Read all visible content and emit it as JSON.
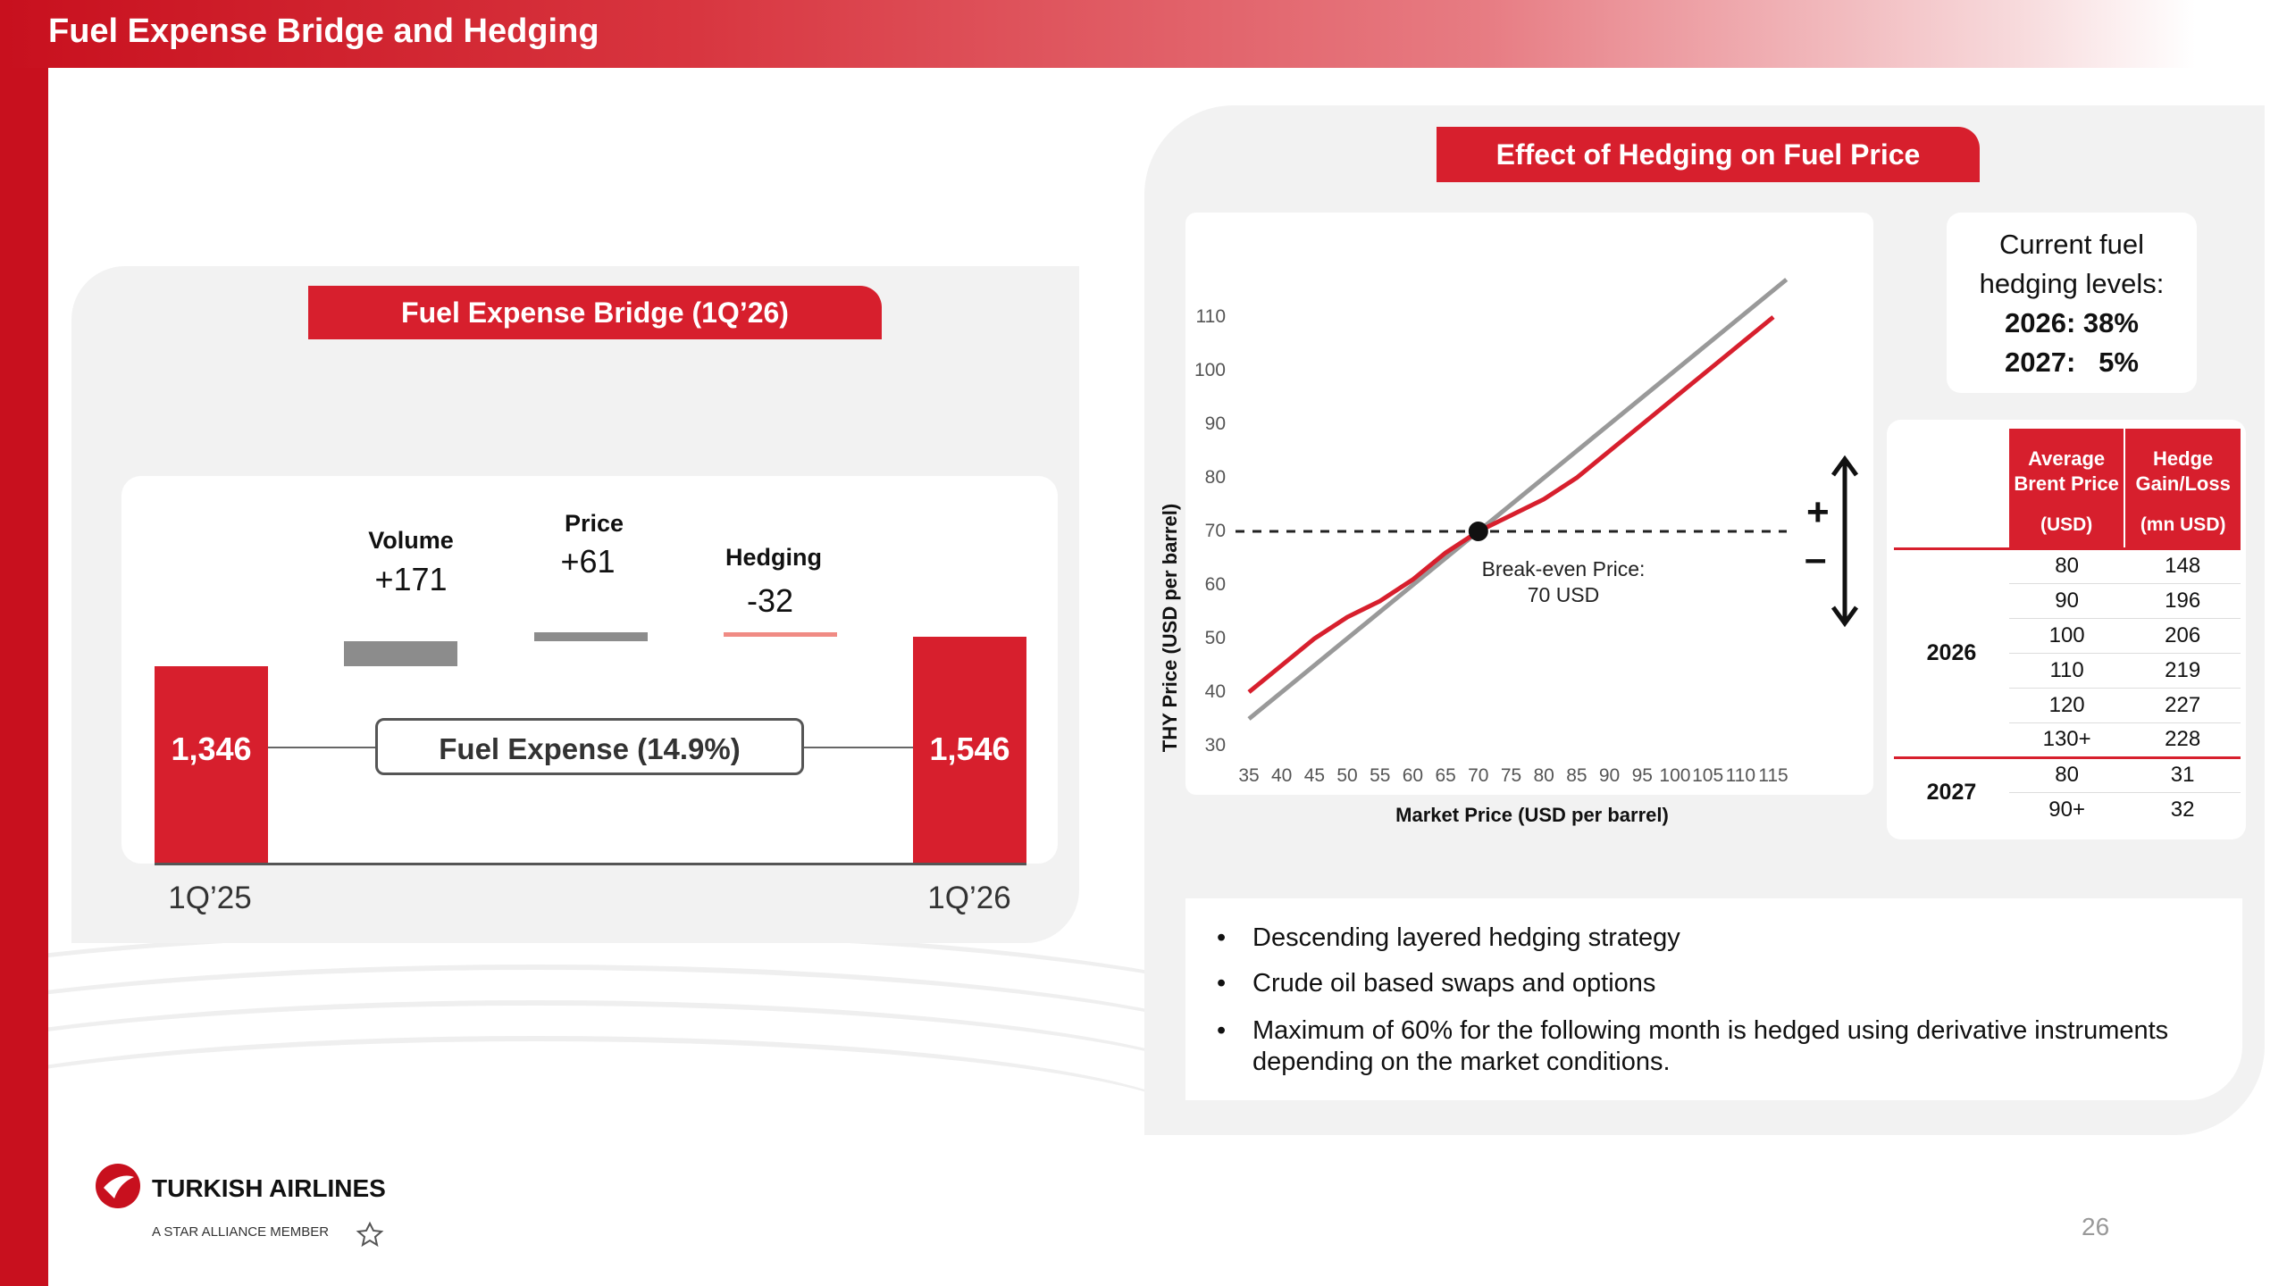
{
  "page": {
    "title": "Fuel Expense Bridge and Hedging",
    "page_number": "26"
  },
  "colors": {
    "brand_red": "#d71f2d",
    "grey": "#8c8c8c",
    "salmon": "#f08b84"
  },
  "bridge": {
    "heading": "Fuel Expense Bridge (1Q’26)",
    "start": {
      "period": "1Q’25",
      "value": "1,346"
    },
    "end": {
      "period": "1Q’26",
      "value": "1,546"
    },
    "center_label": "Fuel Expense (14.9%)",
    "steps": [
      {
        "label": "Volume",
        "value": "+171"
      },
      {
        "label": "Price",
        "value": "+61"
      },
      {
        "label": "Hedging",
        "value": "-32"
      }
    ]
  },
  "hedge_section": {
    "heading": "Effect of Hedging on Fuel Price",
    "levels": {
      "line1": "Current fuel",
      "line2": "hedging levels:",
      "line3": "2026: 38%",
      "line4": "2027:   5%"
    },
    "table": {
      "col1_header": "Average Brent Price",
      "col1_unit": "(USD)",
      "col2_header": "Hedge Gain/Loss",
      "col2_unit": "(mn USD)",
      "groups": [
        {
          "year": "2026",
          "rows": [
            [
              "80",
              "148"
            ],
            [
              "90",
              "196"
            ],
            [
              "100",
              "206"
            ],
            [
              "110",
              "219"
            ],
            [
              "120",
              "227"
            ],
            [
              "130+",
              "228"
            ]
          ]
        },
        {
          "year": "2027",
          "rows": [
            [
              "80",
              "31"
            ],
            [
              "90+",
              "32"
            ]
          ]
        }
      ]
    },
    "bullets": [
      "Descending layered hedging strategy",
      "Crude oil based swaps and options",
      "Maximum of 60% for the following month is hedged using derivative instruments depending on the market conditions."
    ],
    "plus_sign": "+",
    "minus_sign": "–"
  },
  "chart_data": {
    "type": "line",
    "xlabel": "Market Price (USD per barrel)",
    "ylabel": "THY Price (USD per barrel)",
    "x_ticks": [
      "35",
      "40",
      "45",
      "50",
      "55",
      "60",
      "65",
      "70",
      "75",
      "80",
      "85",
      "90",
      "95",
      "100",
      "105",
      "110",
      "115"
    ],
    "y_ticks": [
      "30",
      "40",
      "50",
      "60",
      "70",
      "80",
      "90",
      "100",
      "110"
    ],
    "xlim": [
      35,
      115
    ],
    "ylim": [
      30,
      110
    ],
    "annotation": {
      "line1": "Break-even Price:",
      "line2": "70 USD",
      "x": 70,
      "y": 70
    },
    "reference_line_y": 70,
    "series": [
      {
        "name": "Market Price",
        "color": "#999999",
        "x": [
          35,
          117
        ],
        "y": [
          35,
          117
        ]
      },
      {
        "name": "THY Price",
        "color": "#d71f2d",
        "x": [
          35,
          40,
          45,
          50,
          55,
          60,
          65,
          70,
          75,
          80,
          85,
          90,
          95,
          100,
          105,
          110,
          115
        ],
        "y": [
          40,
          45,
          50,
          54,
          57,
          61,
          66,
          70,
          73,
          76,
          80,
          85,
          90,
          95,
          100,
          105,
          110
        ]
      }
    ]
  }
}
